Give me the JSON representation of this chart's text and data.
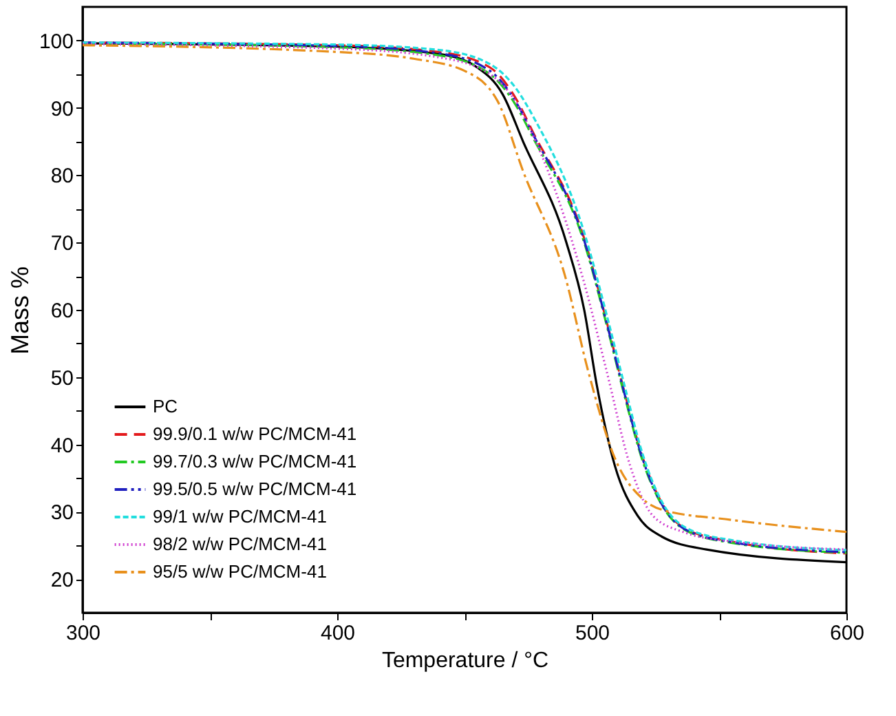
{
  "chart_data": {
    "type": "line",
    "xlabel": "Temperature / °C",
    "ylabel": "Mass %",
    "xlim": [
      300,
      600
    ],
    "ylim": [
      15,
      105
    ],
    "xticks": [
      300,
      {
        "value": 350,
        "label": null
      },
      400,
      {
        "value": 450,
        "label": null
      },
      500,
      {
        "value": 550,
        "label": null
      },
      600
    ],
    "yticks": [
      20,
      {
        "value": 25,
        "label": null
      },
      30,
      {
        "value": 35,
        "label": null
      },
      40,
      {
        "value": 45,
        "label": null
      },
      50,
      {
        "value": 55,
        "label": null
      },
      60,
      {
        "value": 65,
        "label": null
      },
      70,
      {
        "value": 75,
        "label": null
      },
      80,
      {
        "value": 85,
        "label": null
      },
      90,
      {
        "value": 95,
        "label": null
      },
      100
    ],
    "grid": false,
    "legend": "bottom left",
    "series": [
      {
        "name": "PC",
        "color": "#000000",
        "line_style": "solid",
        "x": [
          300,
          400,
          440,
          455,
          465,
          473,
          490,
          497,
          502,
          509,
          518,
          527.5,
          545,
          600
        ],
        "values": [
          99.6,
          99.1,
          98,
          96,
          92,
          85,
          70,
          60,
          48.7,
          36.9,
          29.4,
          26.3,
          24.4,
          22.5
        ]
      },
      {
        "name": "99.9/0.1 w/w PC/MCM-41",
        "color": "#e31a1c",
        "line_style": "dashed",
        "x": [
          300,
          400,
          440,
          460,
          470,
          477,
          497,
          506,
          513,
          520,
          527.5,
          536.6,
          554.7,
          600
        ],
        "values": [
          99.7,
          99.3,
          98.3,
          96,
          91.5,
          86.3,
          70.6,
          58,
          47.5,
          38,
          31.3,
          27.5,
          25.6,
          23.8
        ]
      },
      {
        "name": "99.7/0.3 w/w PC/MCM-41",
        "color": "#22c922",
        "line_style": "dashdot",
        "x": [
          300,
          400,
          440,
          460,
          470,
          477,
          497,
          506,
          513,
          520,
          527.5,
          536.6,
          554.7,
          600
        ],
        "values": [
          99.6,
          99.0,
          97.8,
          95,
          90.5,
          85.5,
          70,
          57.5,
          47,
          37.5,
          31,
          27.3,
          25.4,
          23.9
        ]
      },
      {
        "name": "99.5/0.5 w/w PC/MCM-41",
        "color": "#1f1fbf",
        "line_style": "dashdotdot",
        "x": [
          300,
          400,
          440,
          460,
          470,
          477,
          497,
          506,
          513,
          520,
          527.5,
          536.6,
          554.7,
          600
        ],
        "values": [
          99.7,
          99.2,
          98.1,
          95.5,
          91,
          86,
          70.3,
          57.8,
          47.3,
          37.8,
          31.1,
          27.4,
          25.5,
          24.0
        ]
      },
      {
        "name": "99/1 w/w PC/MCM-41",
        "color": "#22dede",
        "line_style": "shortdash",
        "x": [
          300,
          400,
          440,
          460,
          470,
          478,
          497,
          506,
          513,
          520,
          527.5,
          536.6,
          554.7,
          600
        ],
        "values": [
          99.7,
          99.4,
          98.6,
          96.5,
          93,
          88,
          71.5,
          59,
          48.5,
          38.5,
          31.5,
          27.7,
          25.8,
          24.3
        ]
      },
      {
        "name": "98/2 w/w PC/MCM-41",
        "color": "#d040d0",
        "line_style": "dotted",
        "x": [
          300,
          400,
          440,
          460,
          470,
          478,
          497,
          506,
          515,
          524,
          536.6,
          554.7,
          600
        ],
        "values": [
          99.5,
          98.8,
          97.5,
          95,
          91,
          85,
          64,
          50.6,
          36.9,
          29.4,
          26.9,
          25.6,
          24.4
        ]
      },
      {
        "name": "95/5 w/w PC/MCM-41",
        "color": "#e8901c",
        "line_style": "dashdot",
        "x": [
          300,
          400,
          430,
          450,
          463,
          473,
          489.5,
          498.5,
          509,
          520,
          527.5,
          554.7,
          600
        ],
        "values": [
          99.3,
          98.3,
          97.3,
          95.5,
          91,
          80.6,
          65,
          51,
          38,
          31.9,
          30.3,
          28.8,
          27
        ]
      }
    ]
  }
}
